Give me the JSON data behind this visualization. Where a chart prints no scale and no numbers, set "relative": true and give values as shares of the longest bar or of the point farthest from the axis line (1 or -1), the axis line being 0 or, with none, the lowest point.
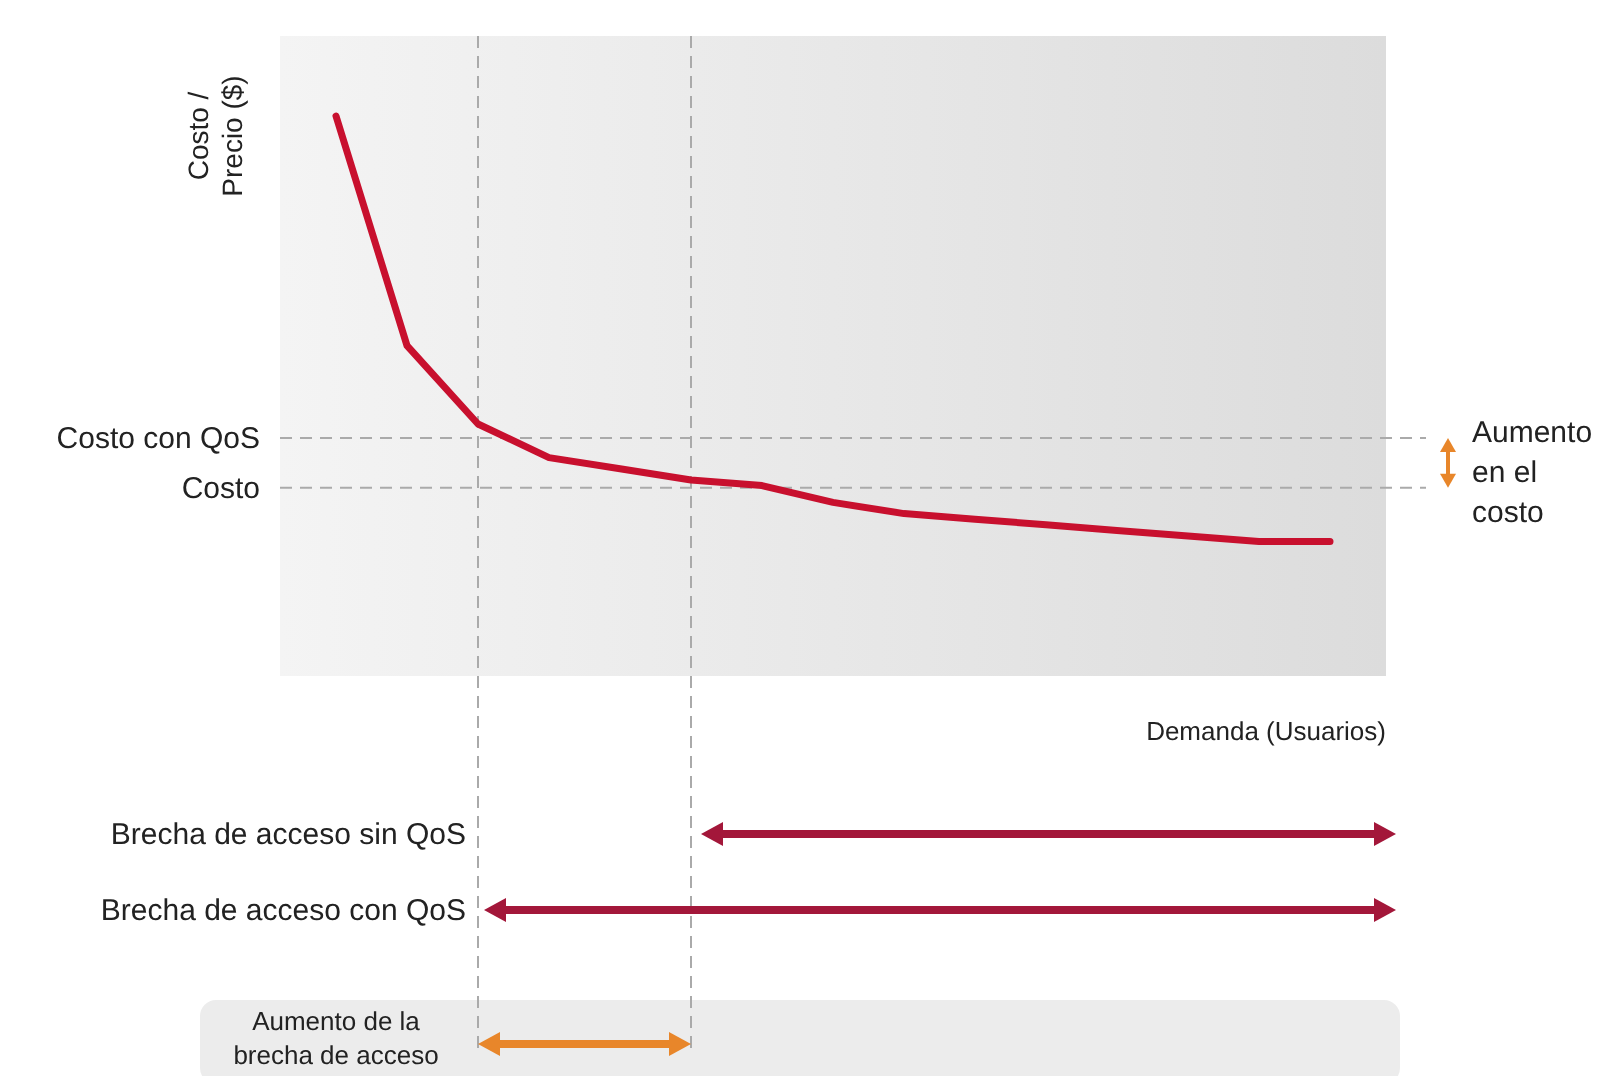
{
  "chart_data": {
    "type": "line",
    "relative": true,
    "xlabel": "Demanda (Usuarios)",
    "ylabel": "Costo / Precio ($)",
    "categories": [
      null,
      null,
      null,
      null,
      null,
      null,
      null,
      null,
      null,
      null,
      null,
      null,
      null,
      null,
      null
    ],
    "series": [
      {
        "color": "#c8102e",
        "values": [
          1.0,
          0.59,
          0.45,
          0.39,
          0.37,
          0.35,
          0.34,
          0.31,
          0.29,
          0.28,
          0.27,
          0.26,
          0.25,
          0.24,
          0.24
        ]
      }
    ],
    "ref_lines": [
      {
        "axis": "y",
        "value": 0.425,
        "label": "Costo con QoS",
        "color": "#aaaaaa",
        "line_style": "dashed"
      },
      {
        "axis": "y",
        "value": 0.336,
        "label": "Costo",
        "color": "#aaaaaa",
        "line_style": "dashed"
      }
    ],
    "annotations": [
      "Aumento en el costo",
      "Brecha de acceso sin QoS",
      "Brecha de acceso con QoS",
      "Aumento de la brecha de acceso"
    ],
    "line_style": "solid"
  }
}
